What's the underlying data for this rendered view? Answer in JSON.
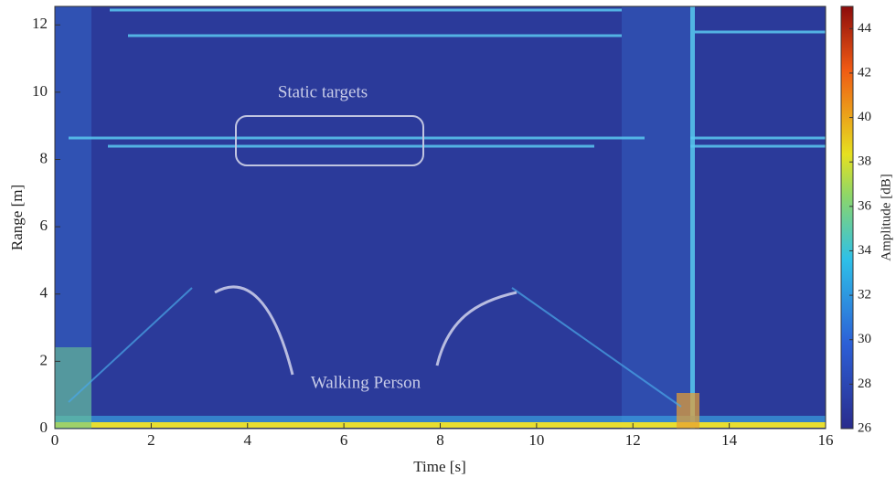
{
  "chart_data": {
    "type": "heatmap",
    "x_label": "Time [s]",
    "y_label": "Range [m]",
    "xlim": [
      0,
      16
    ],
    "xticks": [
      0,
      2,
      4,
      6,
      8,
      10,
      12,
      14,
      16
    ],
    "ylim": [
      0,
      12.55
    ],
    "yticks": [
      0,
      2,
      4,
      6,
      8,
      10,
      12
    ],
    "colorbar": {
      "label": "Amplitude [dB]",
      "lim": [
        26,
        45
      ],
      "ticks": [
        26,
        28,
        30,
        32,
        34,
        36,
        38,
        40,
        42,
        44
      ]
    },
    "annotations": [
      "Static targets",
      "Walking Person"
    ]
  }
}
